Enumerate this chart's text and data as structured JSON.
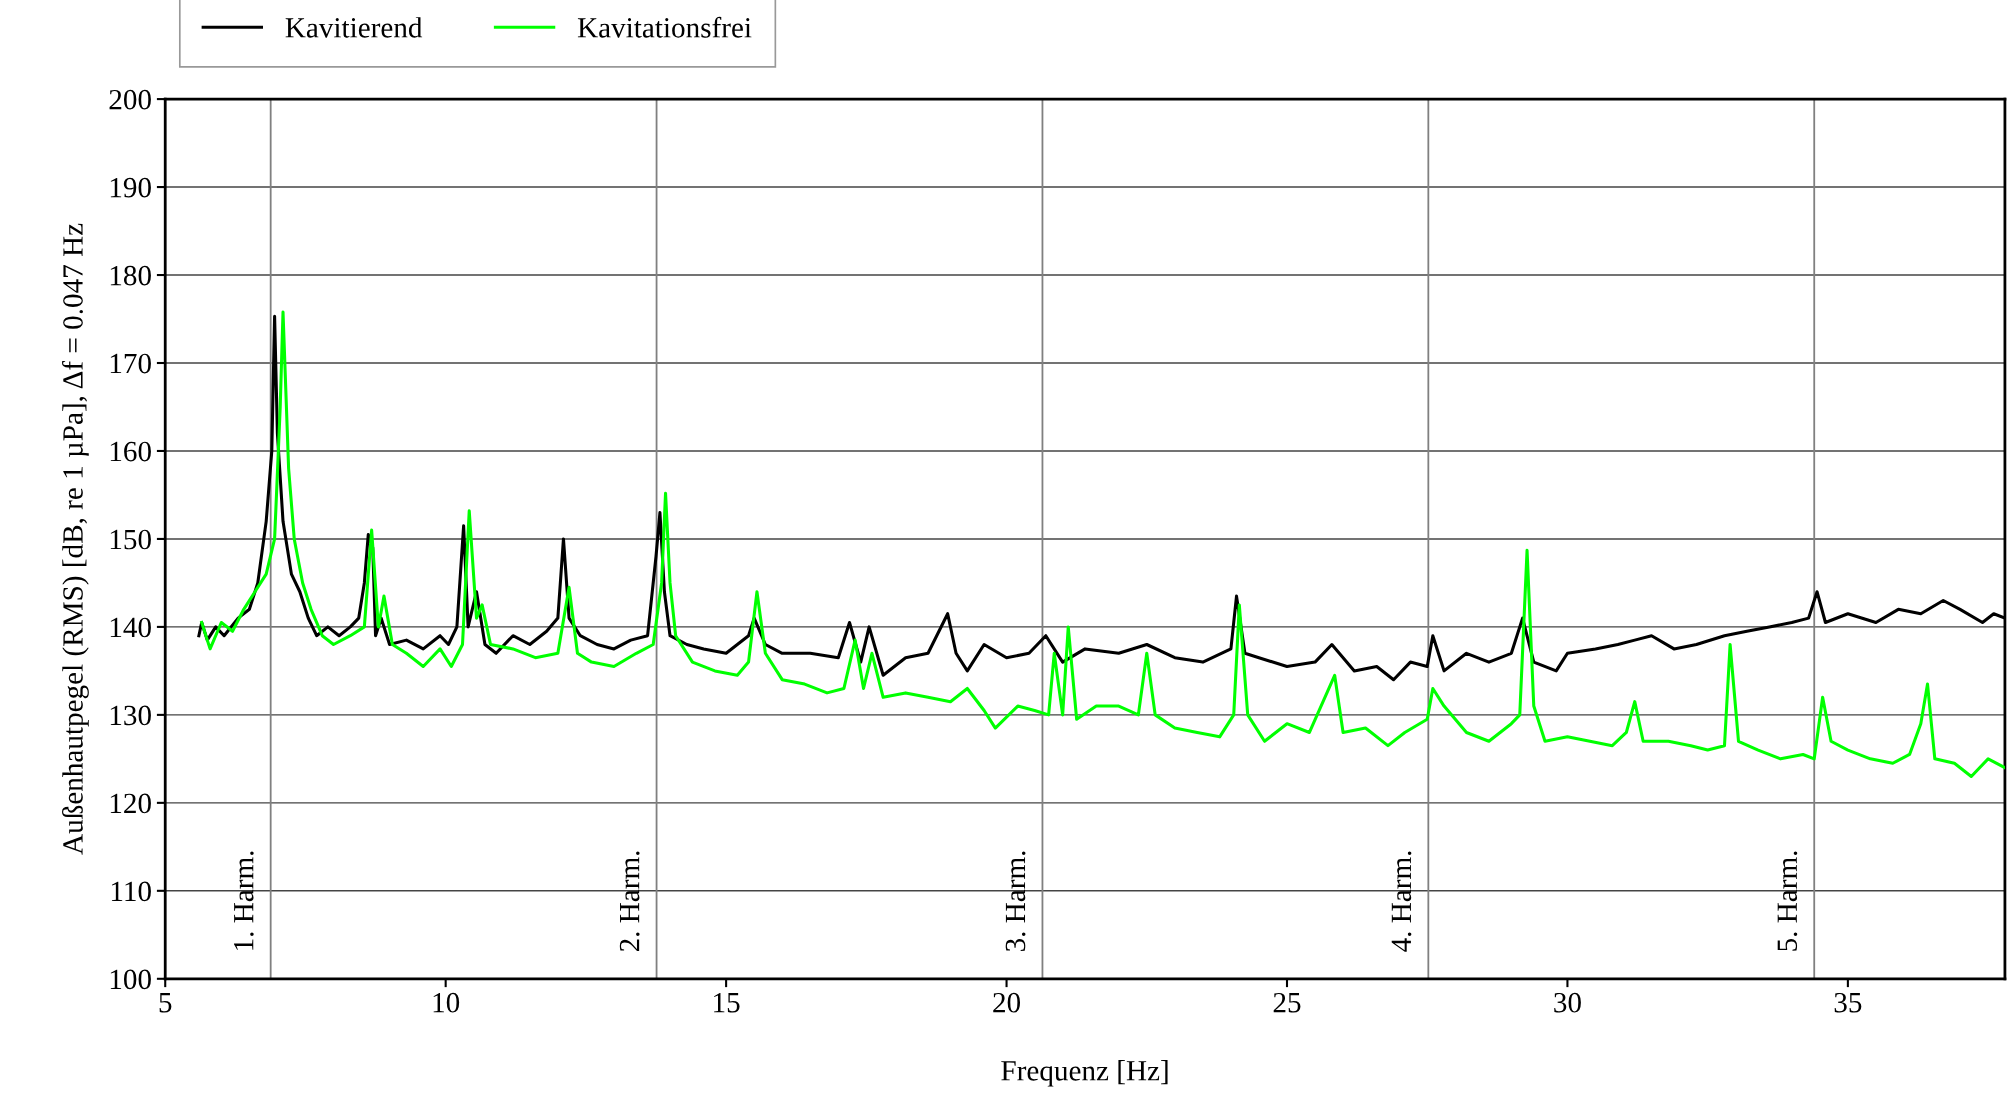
{
  "chart_data": {
    "type": "line",
    "xlabel": "Frequenz [Hz]",
    "ylabel": "Außenhautpegel (RMS) [dB, re 1 µPa], Δf = 0.047 Hz",
    "xlim": [
      5,
      37.8
    ],
    "xticks": [
      5,
      10,
      15,
      20,
      25,
      30,
      35
    ],
    "ylim": [
      100,
      200
    ],
    "yticks": [
      100,
      110,
      120,
      130,
      140,
      150,
      160,
      170,
      180,
      190,
      200
    ],
    "grid": "y",
    "legend": "top left",
    "line_style": "solid",
    "marker": "none",
    "series": [
      {
        "name": "Kavitierend",
        "color": "#000000",
        "x": [
          5.6,
          5.65,
          5.75,
          5.9,
          6.05,
          6.3,
          6.5,
          6.65,
          6.8,
          6.9,
          6.95,
          7.0,
          7.1,
          7.25,
          7.4,
          7.55,
          7.7,
          7.9,
          8.1,
          8.3,
          8.45,
          8.55,
          8.62,
          8.7,
          8.75,
          8.85,
          9.0,
          9.3,
          9.6,
          9.9,
          10.05,
          10.2,
          10.32,
          10.4,
          10.55,
          10.7,
          10.9,
          11.2,
          11.5,
          11.8,
          12.0,
          12.1,
          12.2,
          12.4,
          12.7,
          13.0,
          13.3,
          13.6,
          13.75,
          13.82,
          13.9,
          14.0,
          14.3,
          14.6,
          15.0,
          15.4,
          15.5,
          15.7,
          16.0,
          16.5,
          17.0,
          17.2,
          17.4,
          17.55,
          17.8,
          18.2,
          18.6,
          18.95,
          19.1,
          19.3,
          19.6,
          20.0,
          20.4,
          20.7,
          21.0,
          21.4,
          22.0,
          22.5,
          23.0,
          23.5,
          24.0,
          24.1,
          24.25,
          24.5,
          25.0,
          25.5,
          25.8,
          26.2,
          26.6,
          26.9,
          27.2,
          27.5,
          27.6,
          27.8,
          28.2,
          28.6,
          29.0,
          29.2,
          29.4,
          29.8,
          30.0,
          30.5,
          30.9,
          31.2,
          31.5,
          31.9,
          32.3,
          32.8,
          33.2,
          33.6,
          34.0,
          34.3,
          34.45,
          34.6,
          35.0,
          35.5,
          35.9,
          36.3,
          36.7,
          37.0,
          37.4,
          37.6,
          37.8
        ],
        "values": [
          139,
          140.5,
          138.5,
          140,
          139,
          141,
          142,
          145,
          152,
          160,
          175.3,
          162,
          152,
          146,
          144,
          141,
          139,
          140,
          139,
          140,
          141,
          145,
          150.5,
          149,
          139,
          141,
          138,
          138.5,
          137.5,
          139,
          138,
          140,
          151.5,
          140,
          144,
          138,
          137,
          139,
          138,
          139.5,
          141,
          150,
          141,
          139,
          138,
          137.5,
          138.5,
          139,
          148,
          153,
          144,
          139,
          138,
          137.5,
          137,
          139,
          141,
          138,
          137,
          137,
          136.5,
          140.5,
          136,
          140,
          134.5,
          136.5,
          137,
          141.5,
          137,
          135,
          138,
          136.5,
          137,
          139,
          136,
          137.5,
          137,
          138,
          136.5,
          136,
          137.5,
          143.5,
          137,
          136.5,
          135.5,
          136,
          138,
          135,
          135.5,
          134,
          136,
          135.5,
          139,
          135,
          137,
          136,
          137,
          141,
          136,
          135,
          137,
          137.5,
          138,
          138.5,
          139,
          137.5,
          138,
          139,
          139.5,
          140,
          140.5,
          141,
          144,
          140.5,
          141.5,
          140.5,
          142,
          141.5,
          143,
          142,
          140.5,
          141.5,
          141
        ]
      },
      {
        "name": "Kavitationsfrei",
        "color": "#00ff00",
        "x": [
          5.65,
          5.8,
          6.0,
          6.2,
          6.4,
          6.6,
          6.8,
          6.95,
          7.05,
          7.1,
          7.2,
          7.3,
          7.45,
          7.6,
          7.8,
          8.0,
          8.3,
          8.55,
          8.68,
          8.8,
          8.9,
          9.05,
          9.3,
          9.6,
          9.9,
          10.1,
          10.3,
          10.42,
          10.55,
          10.65,
          10.8,
          11.2,
          11.6,
          12.0,
          12.2,
          12.35,
          12.6,
          13.0,
          13.4,
          13.7,
          13.85,
          13.92,
          14.0,
          14.1,
          14.4,
          14.8,
          15.2,
          15.4,
          15.55,
          15.7,
          16.0,
          16.4,
          16.8,
          17.1,
          17.3,
          17.45,
          17.6,
          17.8,
          18.2,
          18.6,
          19.0,
          19.3,
          19.6,
          19.8,
          20.2,
          20.5,
          20.75,
          20.85,
          21.0,
          21.1,
          21.25,
          21.6,
          22.0,
          22.35,
          22.5,
          22.65,
          23.0,
          23.4,
          23.8,
          24.05,
          24.15,
          24.3,
          24.6,
          25.0,
          25.4,
          25.85,
          26.0,
          26.4,
          26.8,
          27.1,
          27.5,
          27.6,
          27.8,
          28.2,
          28.6,
          29.0,
          29.15,
          29.28,
          29.4,
          29.6,
          30.0,
          30.4,
          30.8,
          31.05,
          31.2,
          31.35,
          31.8,
          32.2,
          32.5,
          32.8,
          32.9,
          33.05,
          33.4,
          33.8,
          34.2,
          34.4,
          34.55,
          34.7,
          35.0,
          35.4,
          35.8,
          36.1,
          36.3,
          36.42,
          36.55,
          36.9,
          37.2,
          37.5,
          37.8
        ],
        "values": [
          140.5,
          137.5,
          140.5,
          139.5,
          142,
          144,
          146,
          150,
          165,
          175.8,
          158,
          150,
          145,
          142,
          139,
          138,
          139,
          140,
          151,
          140,
          143.5,
          138,
          137,
          135.5,
          137.5,
          135.5,
          138,
          153.2,
          141,
          142.5,
          138,
          137.5,
          136.5,
          137,
          144.5,
          137,
          136,
          135.5,
          137,
          138,
          145,
          155.2,
          145,
          139,
          136,
          135,
          134.5,
          136,
          144,
          137,
          134,
          133.5,
          132.5,
          133,
          138.5,
          133,
          137,
          132,
          132.5,
          132,
          131.5,
          133,
          130.5,
          128.5,
          131,
          130.5,
          130,
          137,
          130,
          140,
          129.5,
          131,
          131,
          130,
          137,
          130,
          128.5,
          128,
          127.5,
          130,
          142.5,
          130,
          127,
          129,
          128,
          134.5,
          128,
          128.5,
          126.5,
          128,
          129.5,
          133,
          131,
          128,
          127,
          129,
          130,
          148.7,
          131,
          127,
          127.5,
          127,
          126.5,
          128,
          131.5,
          127,
          127,
          126.5,
          126,
          126.5,
          138,
          127,
          126,
          125,
          125.5,
          125,
          132,
          127,
          126,
          125,
          124.5,
          125.5,
          129,
          133.5,
          125,
          124.5,
          123,
          125,
          124
        ]
      }
    ],
    "ref_lines": [
      {
        "axis": "x",
        "value": 6.88,
        "label": "1. Harm.",
        "color": "#808080"
      },
      {
        "axis": "x",
        "value": 13.76,
        "label": "2. Harm.",
        "color": "#808080"
      },
      {
        "axis": "x",
        "value": 20.64,
        "label": "3. Harm.",
        "color": "#808080"
      },
      {
        "axis": "x",
        "value": 27.52,
        "label": "4. Harm.",
        "color": "#808080"
      },
      {
        "axis": "x",
        "value": 34.4,
        "label": "5. Harm.",
        "color": "#808080"
      }
    ]
  }
}
